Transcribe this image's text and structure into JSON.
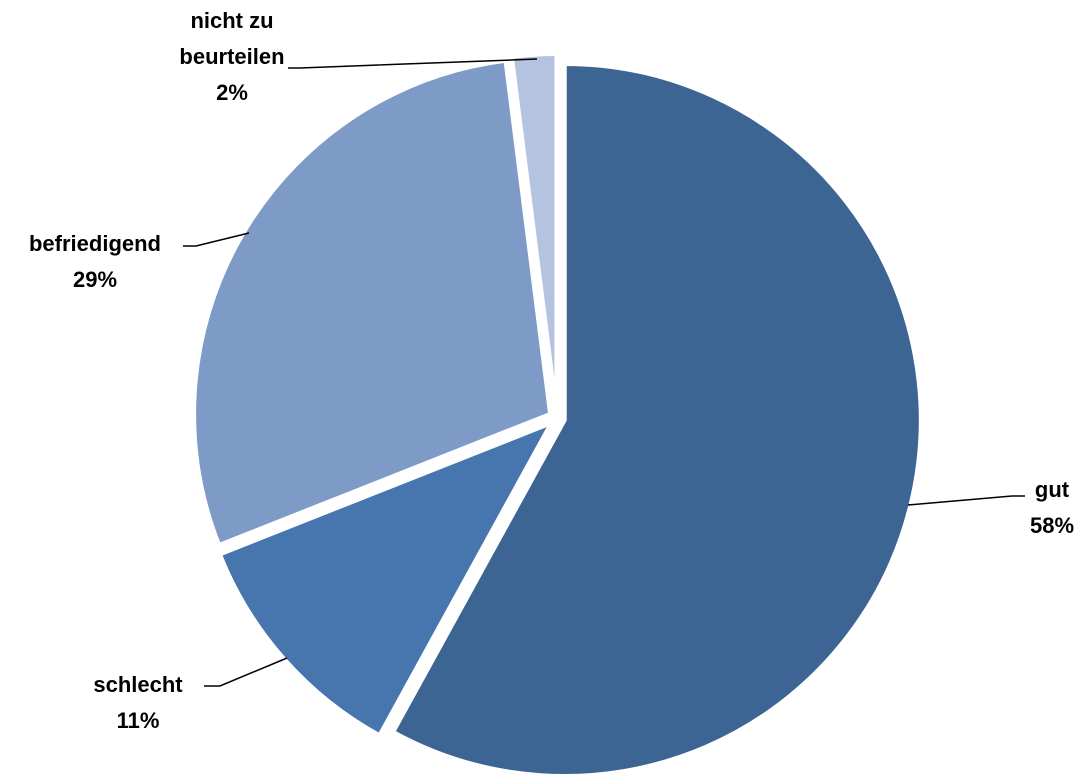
{
  "chart_data": {
    "type": "pie",
    "title": "",
    "exploded": true,
    "slices": [
      {
        "name": "gut",
        "value": 58,
        "label": "58%",
        "color": "#3d6593"
      },
      {
        "name": "schlecht",
        "value": 11,
        "label": "11%",
        "color": "#4776ae"
      },
      {
        "name": "befriedigend",
        "value": 29,
        "label": "29%",
        "color": "#7e9ac6"
      },
      {
        "name": "nicht zu beurteilen",
        "value": 2,
        "label": "2%",
        "color": "#b4c3e0"
      }
    ],
    "category_label_lines": [
      [
        "gut"
      ],
      [
        "schlecht"
      ],
      [
        "befriedigend"
      ],
      [
        "nicht zu",
        "beurteilen"
      ]
    ],
    "slice_stroke_color": "#ffffff",
    "leader_line_color": "#000000"
  }
}
